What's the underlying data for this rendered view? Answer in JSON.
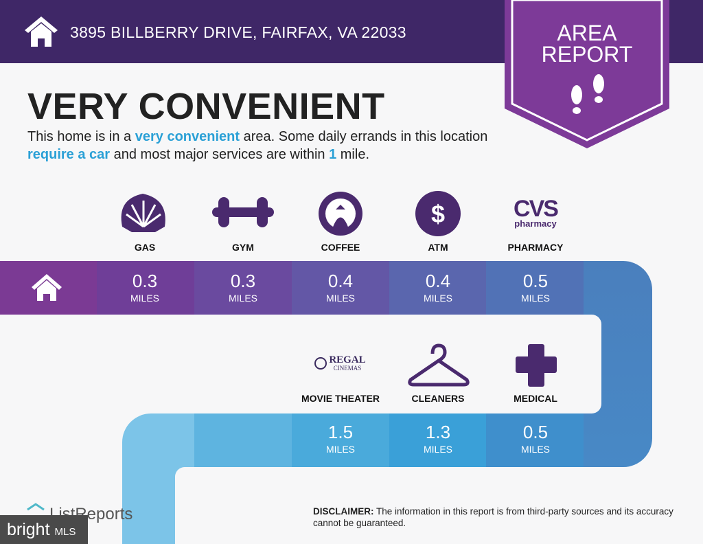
{
  "header": {
    "address": "3895 BILLBERRY DRIVE, FAIRFAX, VA 22033"
  },
  "badge": {
    "line1": "AREA",
    "line2": "REPORT"
  },
  "title": "VERY CONVENIENT",
  "description": [
    {
      "text": "This home is in a "
    },
    {
      "text": "very convenient",
      "highlight": true
    },
    {
      "text": " area. Some daily errands in this location "
    },
    {
      "text": "require a car",
      "highlight": true
    },
    {
      "text": " and most major services are within "
    },
    {
      "text": "1",
      "highlight": true
    },
    {
      "text": " mile."
    }
  ],
  "services": [
    {
      "label": "GAS",
      "distance": "0.3",
      "unit": "MILES"
    },
    {
      "label": "GYM",
      "distance": "0.3",
      "unit": "MILES"
    },
    {
      "label": "COFFEE",
      "distance": "0.4",
      "unit": "MILES"
    },
    {
      "label": "ATM",
      "distance": "0.4",
      "unit": "MILES"
    },
    {
      "label": "PHARMACY",
      "distance": "0.5",
      "unit": "MILES",
      "logo_text": [
        "CVS",
        "pharmacy"
      ]
    },
    {
      "label": "MOVIE THEATER",
      "distance": "1.5",
      "unit": "MILES",
      "logo_text": [
        "REGAL",
        "CINEMAS"
      ]
    },
    {
      "label": "CLEANERS",
      "distance": "1.3",
      "unit": "MILES"
    },
    {
      "label": "MEDICAL",
      "distance": "0.5",
      "unit": "MILES"
    }
  ],
  "footer": {
    "brand": "ListReports",
    "mls": [
      "bright",
      "MLS"
    ],
    "disclaimer_label": "DISCLAIMER:",
    "disclaimer_text": " The information in this report is from third-party sources and its accuracy cannot be guaranteed."
  }
}
